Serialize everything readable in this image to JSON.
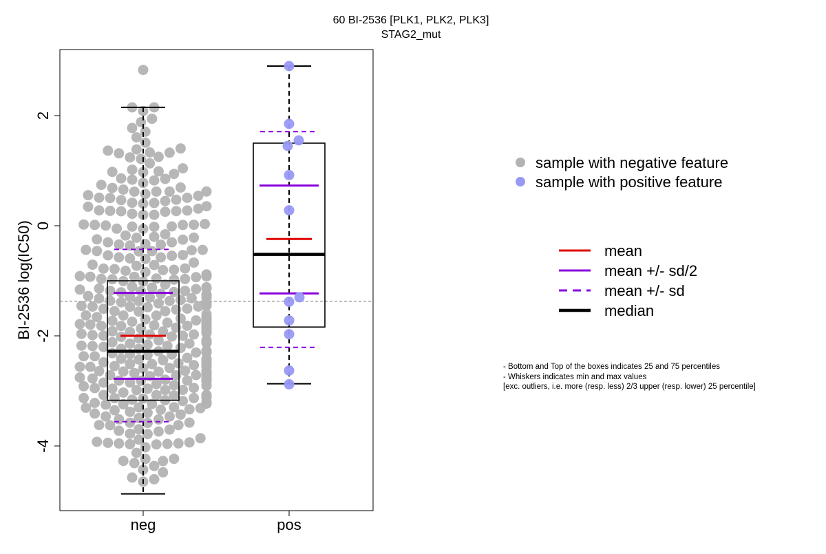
{
  "chart_data": {
    "type": "box-beeswarm",
    "title": "60 BI-2536 [PLK1, PLK2, PLK3]",
    "subtitle": "STAG2_mut",
    "ylabel": "BI-2536 log(IC50)",
    "xlabel": "",
    "categories": [
      "neg",
      "pos"
    ],
    "ylim": [
      -5.2,
      3.2
    ],
    "yticks": [
      -4,
      -2,
      0,
      2
    ],
    "grid": false,
    "reference_line_y": -1.37,
    "colors": {
      "negative_points": "#b3b3b3",
      "positive_points": "#9999f5",
      "mean": "#e00000",
      "sd": "#8800dd",
      "median": "#000000",
      "reference_line": "#888888"
    },
    "boxes": [
      {
        "group": "neg",
        "whisker_low": -4.87,
        "q1": -3.17,
        "median": -2.28,
        "q3": -1.0,
        "whisker_high": 2.15,
        "mean": -2.0,
        "mean_minus_half_sd": -2.78,
        "mean_plus_half_sd": -1.22,
        "mean_minus_sd": -3.56,
        "mean_plus_sd": -0.43
      },
      {
        "group": "pos",
        "whisker_low": -2.87,
        "q1": -1.84,
        "median": -0.52,
        "q3": 1.5,
        "whisker_high": 2.9,
        "mean": -0.24,
        "mean_minus_half_sd": -1.23,
        "mean_plus_half_sd": 0.73,
        "mean_minus_sd": -2.21,
        "mean_plus_sd": 1.71
      }
    ],
    "pos_points": [
      2.9,
      1.85,
      1.55,
      1.45,
      0.92,
      0.28,
      -1.3,
      -1.38,
      -1.72,
      -1.97,
      -2.63,
      -2.88
    ],
    "neg_point_count": 400
  },
  "legend_points": {
    "negative": "sample with negative feature",
    "positive": "sample with positive feature"
  },
  "legend_lines": {
    "mean": "mean",
    "half_sd": "mean +/- sd/2",
    "sd": "mean +/- sd",
    "median": "median"
  },
  "notes": {
    "line1": "- Bottom and Top of the boxes indicates 25 and 75 percentiles",
    "line2": "- Whiskers indicates min and max values",
    "line3": "[exc. outliers, i.e. more (resp. less) 2/3 upper (resp. lower) 25 percentile]"
  }
}
